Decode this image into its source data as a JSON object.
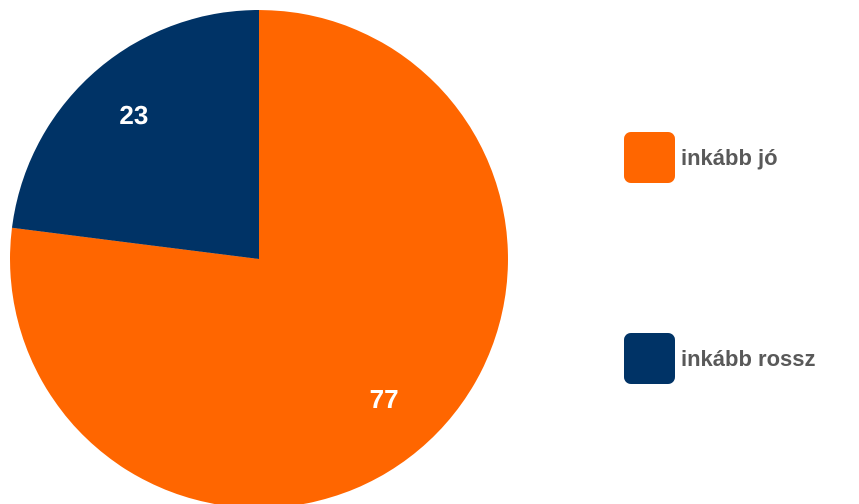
{
  "chart_data": {
    "type": "pie",
    "categories": [
      "inkább jó",
      "inkább rossz"
    ],
    "values": [
      77,
      23
    ],
    "colors": [
      "#ff6600",
      "#003366"
    ],
    "data_labels": [
      "77",
      "23"
    ],
    "start_angle_deg": 0,
    "direction": "clockwise",
    "legend_position": "right"
  },
  "legend": {
    "items": [
      {
        "label": "inkább jó",
        "color": "#ff6600"
      },
      {
        "label": "inkább rossz",
        "color": "#003366"
      }
    ]
  }
}
